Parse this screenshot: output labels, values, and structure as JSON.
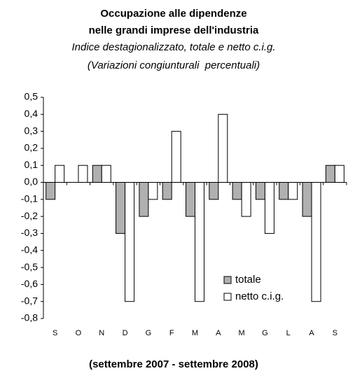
{
  "chart_data": {
    "type": "bar",
    "title": "Occupazione alle dipendenze",
    "title2": "nelle grandi imprese dell'industria",
    "subtitle": "Indice destagionalizzato, totale e netto c.i.g.",
    "subtitle2": "(Variazioni congiunturali  percentuali)",
    "xlabel": "(settembre 2007 - settembre 2008)",
    "categories": [
      "S",
      "O",
      "N",
      "D",
      "G",
      "F",
      "M",
      "A",
      "M",
      "G",
      "L",
      "A",
      "S"
    ],
    "series": [
      {
        "name": "totale",
        "color": "#b0b0b0",
        "values": [
          -0.1,
          0,
          0.1,
          -0.3,
          -0.2,
          -0.1,
          -0.2,
          -0.1,
          -0.1,
          -0.1,
          -0.1,
          -0.2,
          0.1
        ]
      },
      {
        "name": "netto c.i.g.",
        "color": "#ffffff",
        "values": [
          0.1,
          0.1,
          0.1,
          -0.7,
          -0.1,
          0.3,
          -0.7,
          0.4,
          -0.2,
          -0.3,
          -0.1,
          -0.7,
          0.1
        ]
      }
    ],
    "ylim": [
      -0.8,
      0.5
    ],
    "yticks": [
      {
        "value": 0.5,
        "label": "0,5"
      },
      {
        "value": 0.4,
        "label": "0,4"
      },
      {
        "value": 0.3,
        "label": "0,3"
      },
      {
        "value": 0.2,
        "label": "0,2"
      },
      {
        "value": 0.1,
        "label": "0,1"
      },
      {
        "value": 0,
        "label": "0,0"
      },
      {
        "value": -0.1,
        "label": "-0,1"
      },
      {
        "value": -0.2,
        "label": "-0,2"
      },
      {
        "value": -0.3,
        "label": "-0,3"
      },
      {
        "value": -0.4,
        "label": "-0,4"
      },
      {
        "value": -0.5,
        "label": "-0,5"
      },
      {
        "value": -0.6,
        "label": "-0,6"
      },
      {
        "value": -0.7,
        "label": "-0,7"
      },
      {
        "value": -0.8,
        "label": "-0,8"
      }
    ],
    "grid": false,
    "legend": "lower right"
  }
}
